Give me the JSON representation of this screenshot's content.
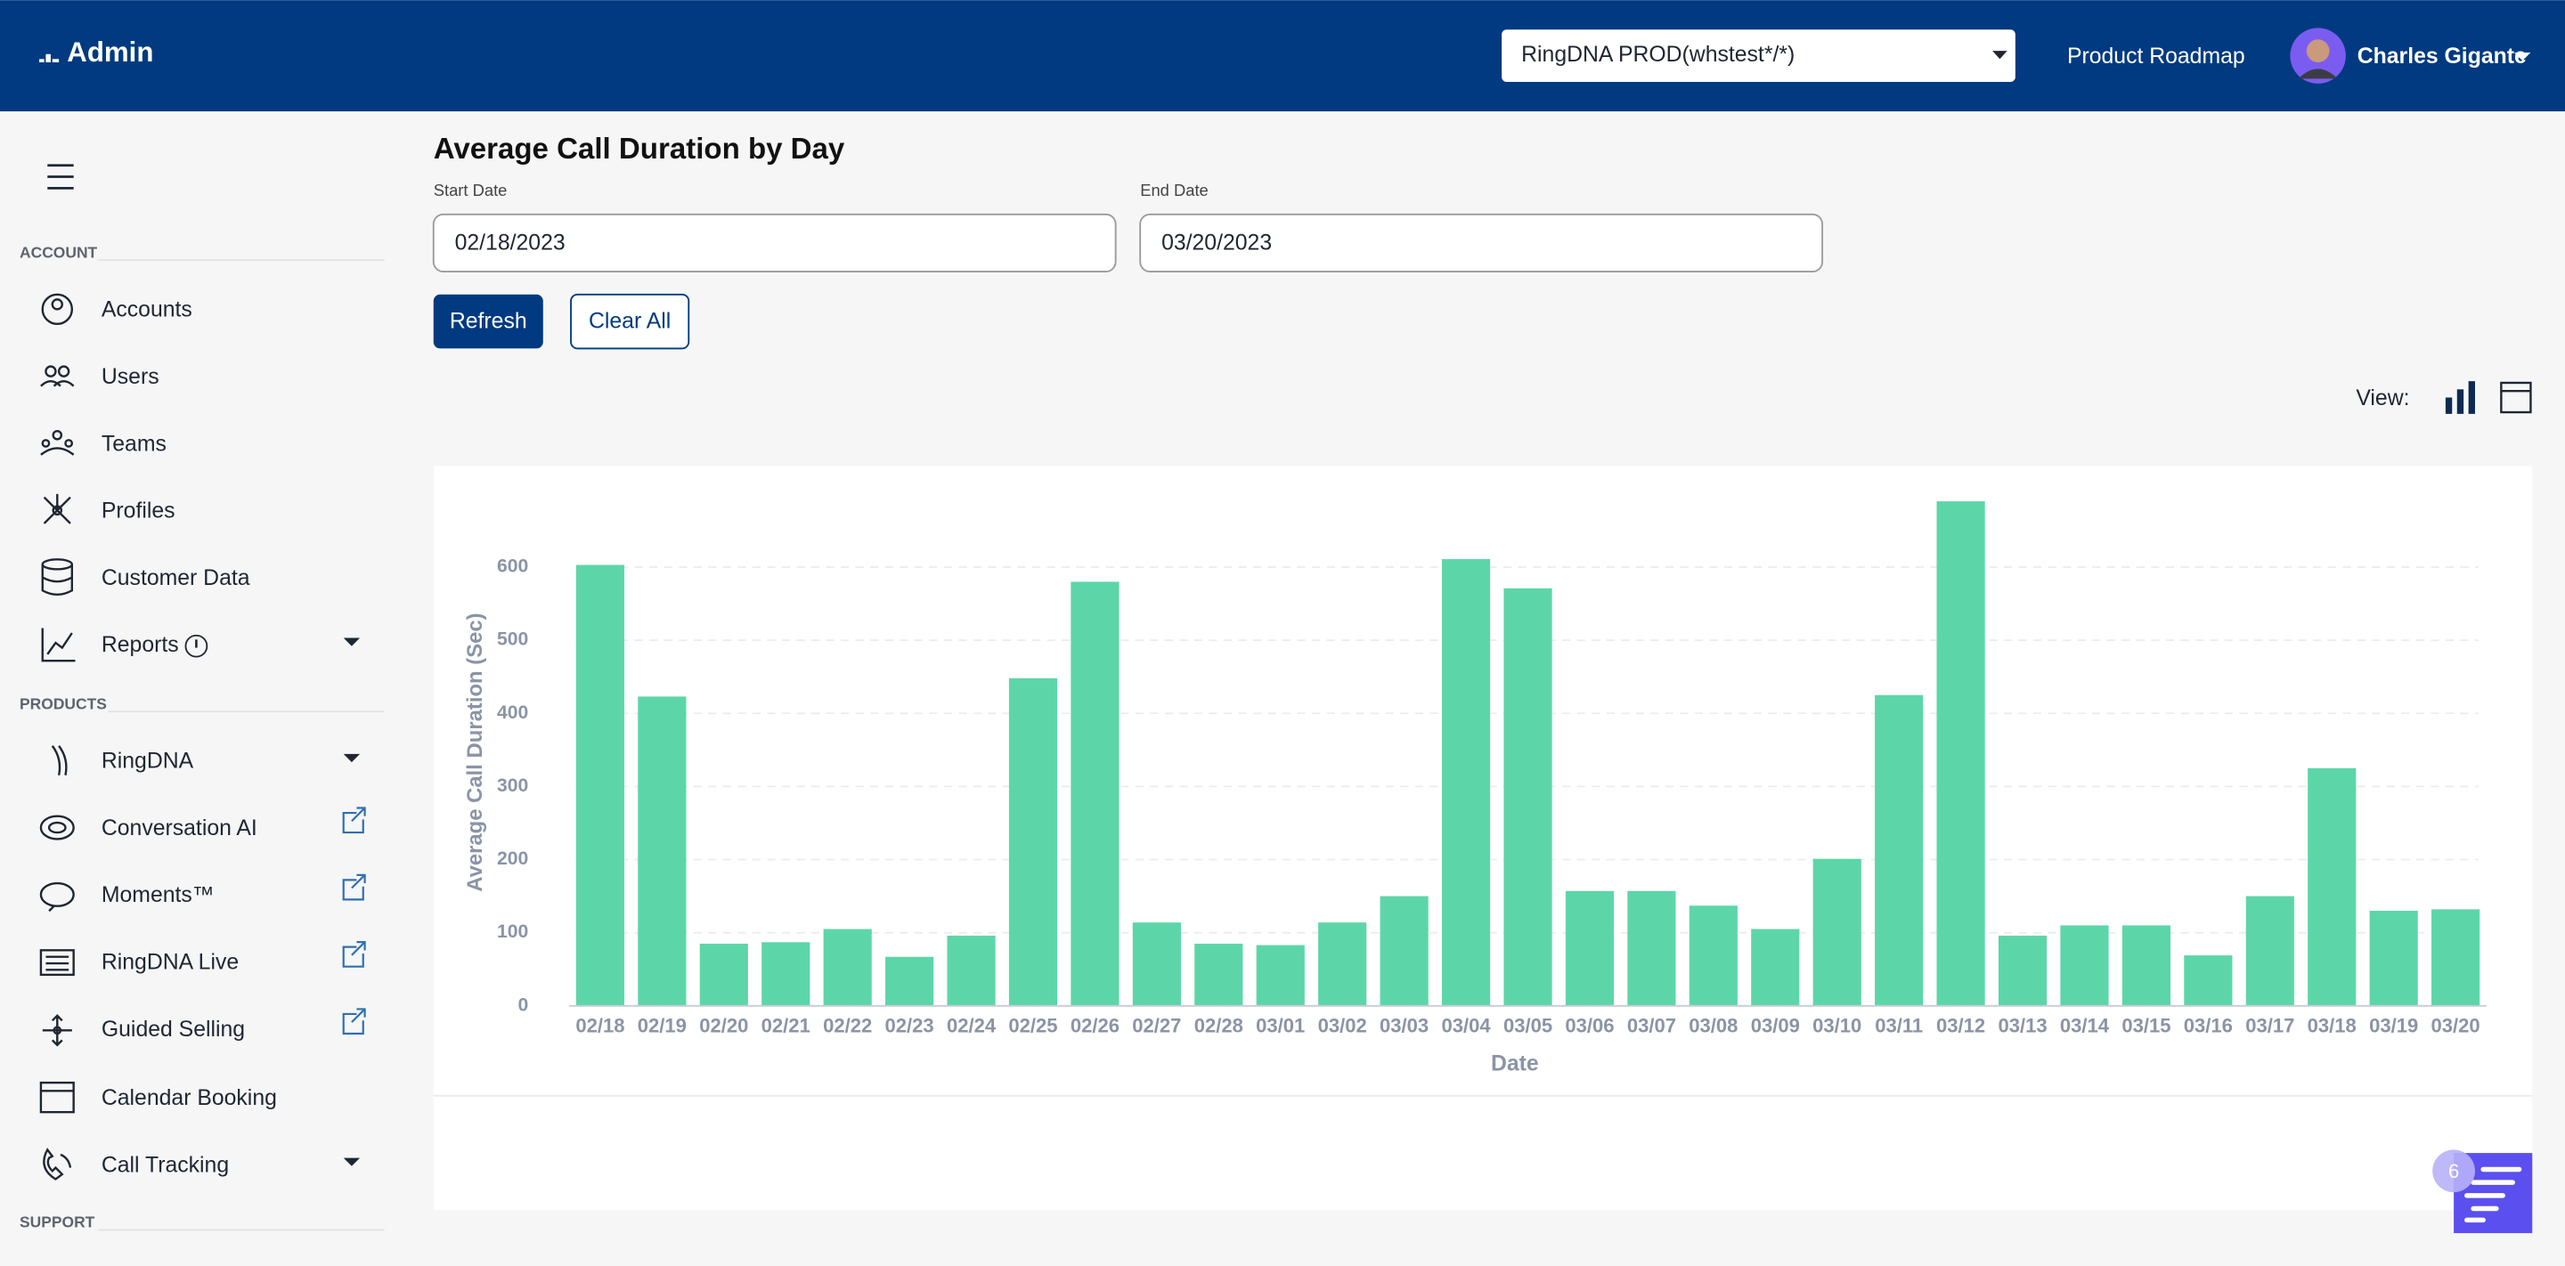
{
  "header": {
    "brand": "Admin",
    "org_select": "RingDNA PROD(whstest*/*)",
    "roadmap": "Product Roadmap",
    "user": "Charles Gigante"
  },
  "sidebar": {
    "account_title": "ACCOUNT",
    "account_items": [
      "Accounts",
      "Users",
      "Teams",
      "Profiles",
      "Customer Data",
      "Reports"
    ],
    "products_title": "PRODUCTS",
    "product_items": [
      "RingDNA",
      "Conversation AI",
      "Moments™",
      "RingDNA Live",
      "Guided Selling",
      "Calendar Booking",
      "Call Tracking"
    ],
    "support_title": "SUPPORT"
  },
  "filters": {
    "start_label": "Start Date",
    "start_value": "02/18/2023",
    "end_label": "End Date",
    "end_value": "03/20/2023",
    "refresh": "Refresh",
    "clear": "Clear All",
    "view_label": "View:"
  },
  "chat_badge": "6",
  "chart_data": {
    "type": "bar",
    "title": "Average Call Duration by Day",
    "xlabel": "Date",
    "ylabel": "Average Call Duration (Sec)",
    "categories": [
      "02/18",
      "02/19",
      "02/20",
      "02/21",
      "02/22",
      "02/23",
      "02/24",
      "02/25",
      "02/26",
      "02/27",
      "02/28",
      "03/01",
      "03/02",
      "03/03",
      "03/04",
      "03/05",
      "03/06",
      "03/07",
      "03/08",
      "03/09",
      "03/10",
      "03/11",
      "03/12",
      "03/13",
      "03/14",
      "03/15",
      "03/16",
      "03/17",
      "03/18",
      "03/19",
      "03/20"
    ],
    "values": [
      603,
      423,
      85,
      87,
      105,
      67,
      96,
      448,
      580,
      114,
      85,
      83,
      114,
      150,
      611,
      571,
      157,
      157,
      137,
      105,
      201,
      425,
      690,
      96,
      110,
      110,
      69,
      150,
      325,
      130,
      132
    ],
    "color": "#5cd6a9",
    "ylim": [
      0,
      700
    ],
    "yticks": [
      0,
      100,
      200,
      300,
      400,
      500,
      600
    ],
    "grid": true
  }
}
